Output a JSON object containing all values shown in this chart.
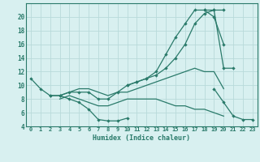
{
  "xlabel": "Humidex (Indice chaleur)",
  "bg_color": "#d8f0f0",
  "grid_color": "#b8dada",
  "line_color": "#2a7a6a",
  "xlim": [
    -0.5,
    23.5
  ],
  "ylim": [
    4,
    22
  ],
  "yticks": [
    4,
    6,
    8,
    10,
    12,
    14,
    16,
    18,
    20
  ],
  "xticks": [
    0,
    1,
    2,
    3,
    4,
    5,
    6,
    7,
    8,
    9,
    10,
    11,
    12,
    13,
    14,
    15,
    16,
    17,
    18,
    19,
    20,
    21,
    22,
    23
  ],
  "lines": [
    {
      "x": [
        0,
        1,
        2,
        3,
        4,
        5,
        6,
        7,
        8,
        9,
        10
      ],
      "y": [
        11,
        9.5,
        8.5,
        8.5,
        8,
        7.5,
        6.5,
        5,
        4.8,
        4.8,
        5.2
      ],
      "marker": true
    },
    {
      "x": [
        2,
        3,
        4,
        5,
        6,
        7,
        8,
        9,
        10,
        11,
        12,
        13,
        14,
        15,
        16,
        17,
        18,
        19,
        20
      ],
      "y": [
        8.5,
        8.5,
        9,
        9,
        9,
        8,
        8,
        9,
        10,
        10.5,
        11,
        12,
        14.5,
        17,
        19,
        21,
        21,
        20,
        16
      ],
      "marker": true
    },
    {
      "x": [
        18,
        19,
        20,
        21
      ],
      "y": [
        21,
        21,
        12.5,
        12.5
      ],
      "marker": true
    },
    {
      "x": [
        10,
        11,
        12,
        13,
        14,
        15,
        16,
        17,
        18,
        19,
        20
      ],
      "y": [
        10,
        10.5,
        11,
        11.5,
        12.5,
        14,
        16,
        19,
        20.5,
        21,
        21
      ],
      "marker": true
    },
    {
      "x": [
        19,
        20,
        21,
        22,
        23
      ],
      "y": [
        9.5,
        7.5,
        5.5,
        5,
        5
      ],
      "marker": true
    },
    {
      "x": [
        3,
        4,
        5,
        6,
        7,
        8,
        9,
        10,
        11,
        12,
        13,
        14,
        15,
        16,
        17,
        18,
        19,
        20
      ],
      "y": [
        8.5,
        9,
        9.5,
        9.5,
        9,
        8.5,
        9,
        9,
        9.5,
        10,
        10.5,
        11,
        11.5,
        12,
        12.5,
        12,
        12,
        9.5
      ],
      "marker": false
    },
    {
      "x": [
        3,
        4,
        5,
        6,
        7,
        8,
        9,
        10,
        11,
        12,
        13,
        14,
        15,
        16,
        17,
        18,
        19,
        20
      ],
      "y": [
        8,
        8.5,
        8,
        7.5,
        7,
        7,
        7.5,
        8,
        8,
        8,
        8,
        7.5,
        7,
        7,
        6.5,
        6.5,
        6,
        5.5
      ],
      "marker": false
    }
  ]
}
